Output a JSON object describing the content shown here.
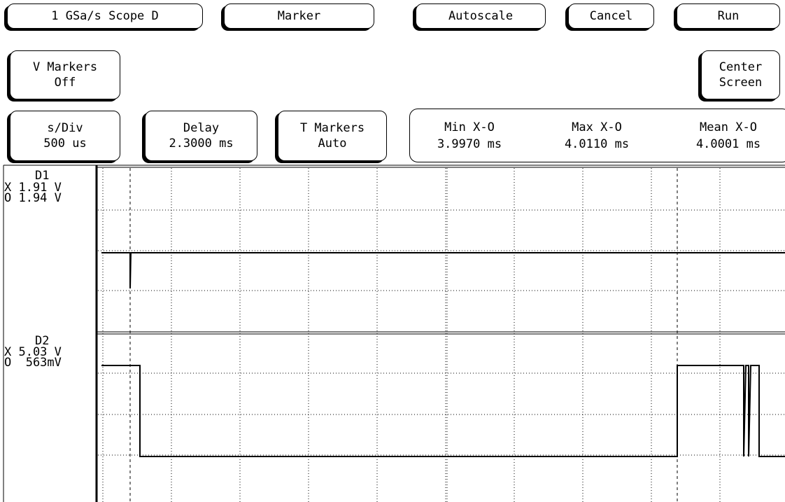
{
  "top_buttons": [
    "1 GSa/s Scope D",
    "Marker",
    "Autoscale",
    "Cancel",
    "Run"
  ],
  "v_markers": {
    "label": "V Markers",
    "value": "Off"
  },
  "center_screen": {
    "line1": "Center",
    "line2": "Screen"
  },
  "s_div": {
    "label": "s/Div",
    "value": "500 us"
  },
  "delay": {
    "label": "Delay",
    "value": "2.3000 ms"
  },
  "t_markers": {
    "label": "T Markers",
    "value": "Auto"
  },
  "measurements": [
    {
      "label": "Min X-O",
      "value": "3.9970 ms"
    },
    {
      "label": "Max X-O",
      "value": "4.0110 ms"
    },
    {
      "label": "Mean X-O",
      "value": "4.0001 ms"
    }
  ],
  "channels": [
    {
      "name": "D1",
      "x": "X 1.91 V",
      "o": "O 1.94 V"
    },
    {
      "name": "D2",
      "x": "X 5.03 V",
      "o": "O  563mV"
    }
  ]
}
